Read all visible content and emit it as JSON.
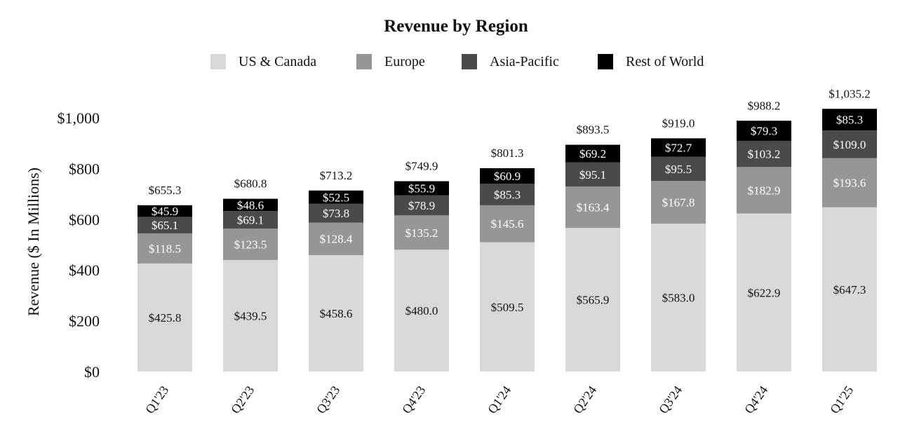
{
  "chart_data": {
    "type": "bar",
    "stacked": true,
    "title": "Revenue by Region",
    "ylabel": "Revenue ($ In Millions)",
    "xlabel": "",
    "ylim": [
      0,
      1000
    ],
    "yticks": [
      0,
      200,
      400,
      600,
      800,
      1000
    ],
    "ytick_labels": [
      "$0",
      "$200",
      "$400",
      "$600",
      "$800",
      "$1,000"
    ],
    "grid": false,
    "legend": "top",
    "categories": [
      "Q1'23",
      "Q2'23",
      "Q3'23",
      "Q4'23",
      "Q1'24",
      "Q2'24",
      "Q3'24",
      "Q4'24",
      "Q1'25"
    ],
    "series": [
      {
        "name": "US & Canada",
        "color": "#d9d9d9",
        "label_color": "#111111",
        "values": [
          425.8,
          439.5,
          458.6,
          480.0,
          509.5,
          565.9,
          583.0,
          622.9,
          647.3
        ],
        "labels": [
          "$425.8",
          "$439.5",
          "$458.6",
          "$480.0",
          "$509.5",
          "$565.9",
          "$583.0",
          "$622.9",
          "$647.3"
        ]
      },
      {
        "name": "Europe",
        "color": "#969696",
        "label_color": "#ffffff",
        "values": [
          118.5,
          123.5,
          128.4,
          135.2,
          145.6,
          163.4,
          167.8,
          182.9,
          193.6
        ],
        "labels": [
          "$118.5",
          "$123.5",
          "$128.4",
          "$135.2",
          "$145.6",
          "$163.4",
          "$167.8",
          "$182.9",
          "$193.6"
        ]
      },
      {
        "name": "Asia-Pacific",
        "color": "#4a4a4a",
        "label_color": "#ffffff",
        "values": [
          65.1,
          69.1,
          73.8,
          78.9,
          85.3,
          95.1,
          95.5,
          103.2,
          109.0
        ],
        "labels": [
          "$65.1",
          "$69.1",
          "$73.8",
          "$78.9",
          "$85.3",
          "$95.1",
          "$95.5",
          "$103.2",
          "$109.0"
        ]
      },
      {
        "name": "Rest of World",
        "color": "#000000",
        "label_color": "#ffffff",
        "values": [
          45.9,
          48.6,
          52.5,
          55.9,
          60.9,
          69.2,
          72.7,
          79.3,
          85.3
        ],
        "labels": [
          "$45.9",
          "$48.6",
          "$52.5",
          "$55.9",
          "$60.9",
          "$69.2",
          "$72.7",
          "$79.3",
          "$85.3"
        ]
      }
    ],
    "totals": [
      655.3,
      680.8,
      713.2,
      749.9,
      801.3,
      893.5,
      919.0,
      988.2,
      1035.2
    ],
    "total_labels": [
      "$655.3",
      "$680.8",
      "$713.2",
      "$749.9",
      "$801.3",
      "$893.5",
      "$919.0",
      "$988.2",
      "$1,035.2"
    ]
  }
}
